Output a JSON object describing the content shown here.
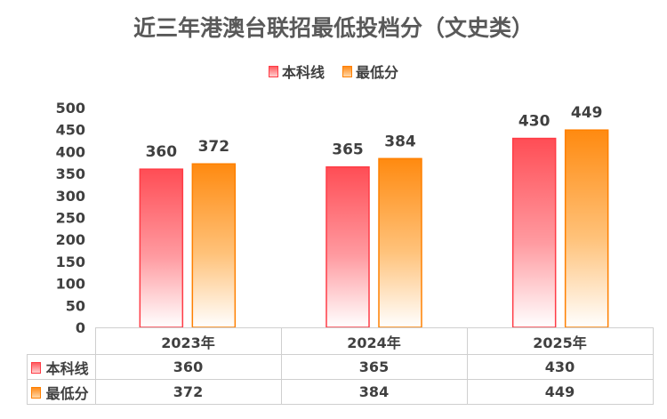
{
  "chart_data": {
    "type": "bar",
    "title": "近三年港澳台联招最低投档分（文史类）",
    "categories": [
      "2023年",
      "2024年",
      "2025年"
    ],
    "series": [
      {
        "name": "本科线",
        "values": [
          360,
          365,
          430
        ],
        "color": "#ff3c46"
      },
      {
        "name": "最低分",
        "values": [
          372,
          384,
          449
        ],
        "color": "#ff8000"
      }
    ],
    "ylim": [
      0,
      500
    ],
    "yticks": [
      "0",
      "50",
      "100",
      "150",
      "200",
      "250",
      "300",
      "350",
      "400",
      "450",
      "500"
    ],
    "legend_position": "top-center",
    "data_table": true,
    "grid": false
  }
}
